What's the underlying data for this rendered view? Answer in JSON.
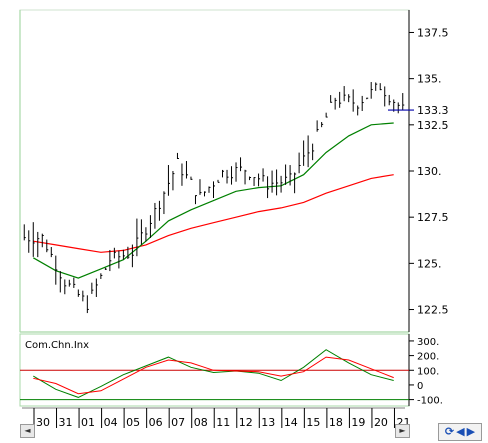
{
  "chart_data": [
    {
      "type": "ohlc",
      "title": "",
      "yticks": [
        "137.5",
        "135.",
        "132.5",
        "130.",
        "127.5",
        "125.",
        "122.5"
      ],
      "ytick_values": [
        137.5,
        135,
        132.5,
        130,
        127.5,
        125,
        122.5
      ],
      "ylim": [
        121.5,
        138.5
      ],
      "last_price_label": "133.3",
      "last_price": 133.3,
      "x": [
        "30",
        "31",
        "01",
        "04",
        "05",
        "06",
        "07",
        "08",
        "11",
        "12",
        "13",
        "14",
        "15",
        "18",
        "19",
        "20",
        "21"
      ],
      "close": [
        126.4,
        124.0,
        122.8,
        125.2,
        125.6,
        127.8,
        130.4,
        128.6,
        129.9,
        130.1,
        129.3,
        129.5,
        131.4,
        133.9,
        133.7,
        134.6,
        133.3
      ],
      "high": [
        126.8,
        124.6,
        123.9,
        125.9,
        126.2,
        128.4,
        130.9,
        129.6,
        130.6,
        130.7,
        130.2,
        130.0,
        132.2,
        134.3,
        134.6,
        135.0,
        133.9
      ],
      "low": [
        124.0,
        123.1,
        122.4,
        124.3,
        124.9,
        126.0,
        128.5,
        128.0,
        129.1,
        129.2,
        128.9,
        128.7,
        130.0,
        133.0,
        133.1,
        133.3,
        132.8
      ],
      "ma_short_values": [
        125.3,
        124.6,
        124.2,
        124.7,
        125.2,
        126.2,
        127.3,
        127.9,
        128.4,
        128.9,
        129.1,
        129.2,
        129.8,
        131.0,
        131.9,
        132.5,
        132.6
      ],
      "ma_long_values": [
        126.2,
        126.0,
        125.8,
        125.6,
        125.7,
        126.0,
        126.5,
        126.9,
        127.2,
        127.5,
        127.8,
        128.0,
        128.3,
        128.8,
        129.2,
        129.6,
        129.8
      ],
      "colors": {
        "bars": "#000000",
        "ma_short": "#008000",
        "ma_long": "#ff0000",
        "last_price_line": "#0000aa"
      }
    },
    {
      "type": "line",
      "indicator_label": "Com.Chn.Inx",
      "yticks": [
        "300.",
        "200.",
        "100.",
        "0",
        "-100."
      ],
      "ytick_values": [
        300,
        200,
        100,
        0,
        -100
      ],
      "ylim": [
        -130,
        320
      ],
      "reference_lines": [
        100,
        -100
      ],
      "x": [
        "30",
        "31",
        "01",
        "04",
        "05",
        "06",
        "07",
        "08",
        "11",
        "12",
        "13",
        "14",
        "15",
        "18",
        "19",
        "20",
        "21"
      ],
      "series": [
        {
          "color": "#008000",
          "values": [
            60,
            -30,
            -85,
            -10,
            70,
            130,
            190,
            120,
            85,
            95,
            80,
            30,
            120,
            240,
            150,
            70,
            30
          ]
        },
        {
          "color": "#ff0000",
          "values": [
            45,
            10,
            -60,
            -40,
            40,
            120,
            170,
            150,
            100,
            95,
            90,
            60,
            90,
            190,
            170,
            110,
            50
          ]
        }
      ]
    }
  ],
  "controls": {
    "scroll_left": "◄",
    "scroll_right": "►",
    "refresh_icon": "refresh-icon",
    "nav_left": "◀",
    "nav_right": "▶",
    "refresh_glyph": "⟳"
  }
}
